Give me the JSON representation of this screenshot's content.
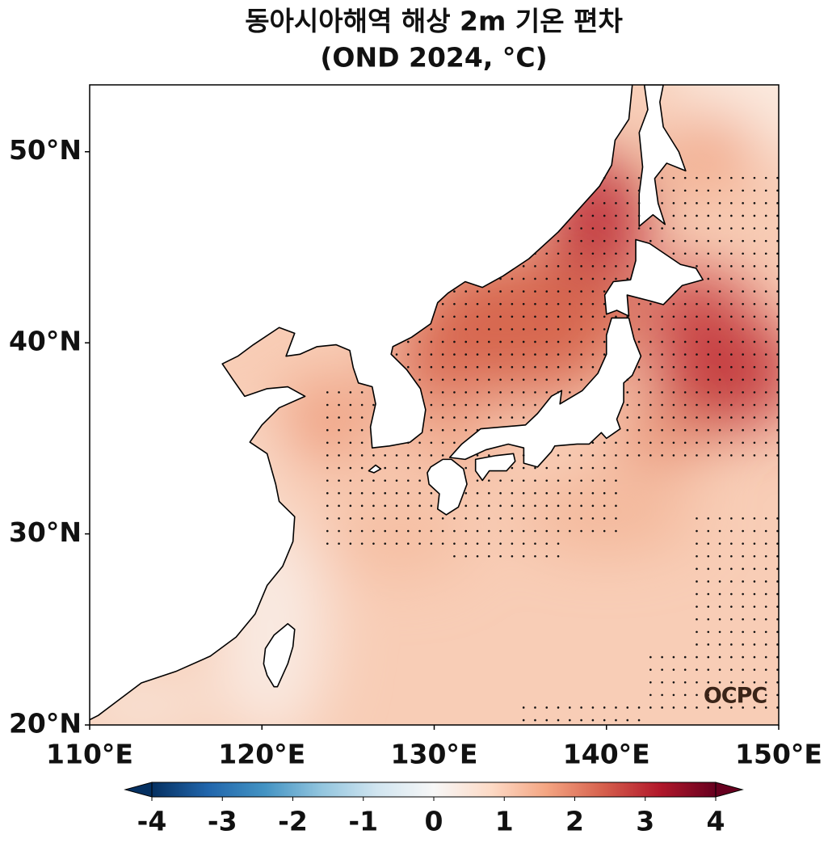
{
  "chart_data": {
    "type": "map",
    "title": "동아시아해역 해상 2m 기온 편차",
    "subtitle": "(OND 2024, °C)",
    "xlim": [
      110,
      150
    ],
    "ylim": [
      20,
      53.5
    ],
    "xticks": [
      {
        "value": 110,
        "label": "110°E"
      },
      {
        "value": 120,
        "label": "120°E"
      },
      {
        "value": 130,
        "label": "130°E"
      },
      {
        "value": 140,
        "label": "140°E"
      },
      {
        "value": 150,
        "label": "150°E"
      }
    ],
    "yticks": [
      {
        "value": 20,
        "label": "20°N"
      },
      {
        "value": 30,
        "label": "30°N"
      },
      {
        "value": 40,
        "label": "40°N"
      },
      {
        "value": 50,
        "label": "50°N"
      }
    ],
    "colorbar": {
      "cmap": "RdBu_r",
      "range": [
        -4,
        4
      ],
      "ticks": [
        -4,
        -3,
        -2,
        -1,
        0,
        1,
        2,
        3,
        4
      ],
      "extend": "both"
    },
    "logo": "OCPC"
  }
}
